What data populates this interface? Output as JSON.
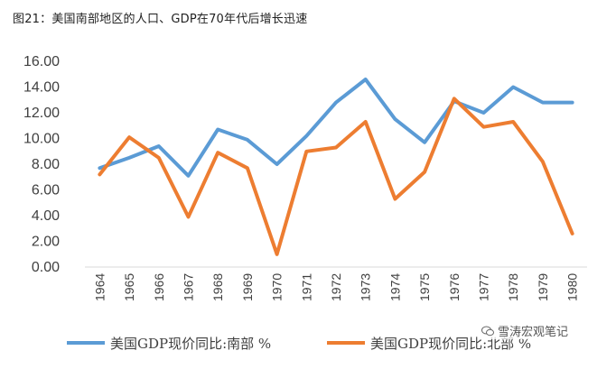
{
  "title": "图21：美国南部地区的人口、GDP在70年代后增长迅速",
  "watermark": "雪涛宏观笔记",
  "watermark_icon": "wechat-bubble-icon",
  "chart_data": {
    "type": "line",
    "title": "图21：美国南部地区的人口、GDP在70年代后增长迅速",
    "xlabel": "",
    "ylabel": "",
    "categories": [
      "1964",
      "1965",
      "1966",
      "1967",
      "1968",
      "1969",
      "1970",
      "1971",
      "1972",
      "1973",
      "1974",
      "1975",
      "1976",
      "1977",
      "1978",
      "1979",
      "1980"
    ],
    "ylim": [
      0,
      16
    ],
    "yticks": [
      "0.00",
      "2.00",
      "4.00",
      "6.00",
      "8.00",
      "10.00",
      "12.00",
      "14.00",
      "16.00"
    ],
    "ytick_values": [
      0,
      2,
      4,
      6,
      8,
      10,
      12,
      14,
      16
    ],
    "grid": false,
    "legend": "bottom",
    "series": [
      {
        "name": "美国GDP现价同比:南部 %",
        "color": "#5b9bd5",
        "values": [
          7.7,
          8.5,
          9.4,
          7.1,
          10.7,
          9.9,
          8.0,
          10.2,
          12.8,
          14.6,
          11.5,
          9.7,
          12.9,
          12.0,
          14.0,
          12.8,
          12.8
        ]
      },
      {
        "name": "美国GDP现价同比:北部 %",
        "color": "#ed7d31",
        "values": [
          7.2,
          10.1,
          8.5,
          3.9,
          8.9,
          7.7,
          1.0,
          9.0,
          9.3,
          11.3,
          5.3,
          7.4,
          13.1,
          10.9,
          11.3,
          8.2,
          2.6
        ]
      }
    ]
  }
}
